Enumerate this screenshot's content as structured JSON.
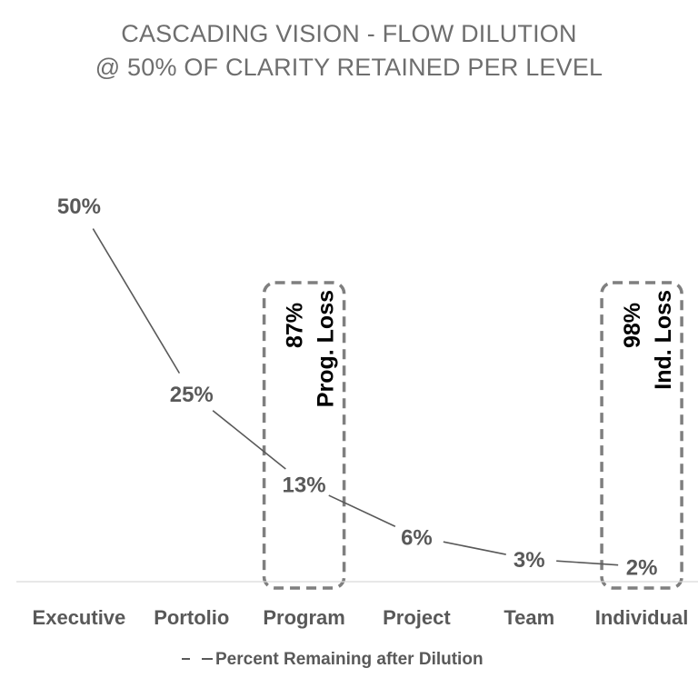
{
  "chart_data": {
    "type": "line",
    "title": "CASCADING VISION - FLOW DILUTION",
    "subtitle": "@ 50% OF CLARITY RETAINED PER LEVEL",
    "categories": [
      "Executive",
      "Portolio",
      "Program",
      "Project",
      "Team",
      "Individual"
    ],
    "series": [
      {
        "name": "Percent Remaining after Dilution",
        "values": [
          50,
          25,
          13,
          6,
          3,
          2
        ],
        "labels": [
          "50%",
          "25%",
          "13%",
          "6%",
          "3%",
          "2%"
        ],
        "color": "#595959"
      }
    ],
    "xlabel": "",
    "ylabel": "",
    "ylim": [
      0,
      60
    ],
    "grid": false,
    "legend_position": "bottom",
    "annotations": [
      {
        "category": "Program",
        "value_text": "87%",
        "label_text": "Prog. Loss",
        "style": "dashed-box",
        "color": "#7f7f7f"
      },
      {
        "category": "Individual",
        "value_text": "98%",
        "label_text": "Ind. Loss",
        "style": "dashed-box",
        "color": "#7f7f7f"
      }
    ],
    "colors": {
      "title": "#6e6e6e",
      "labels": "#595959",
      "axis": "#d9d9d9",
      "annotation_text": "#000000"
    }
  }
}
